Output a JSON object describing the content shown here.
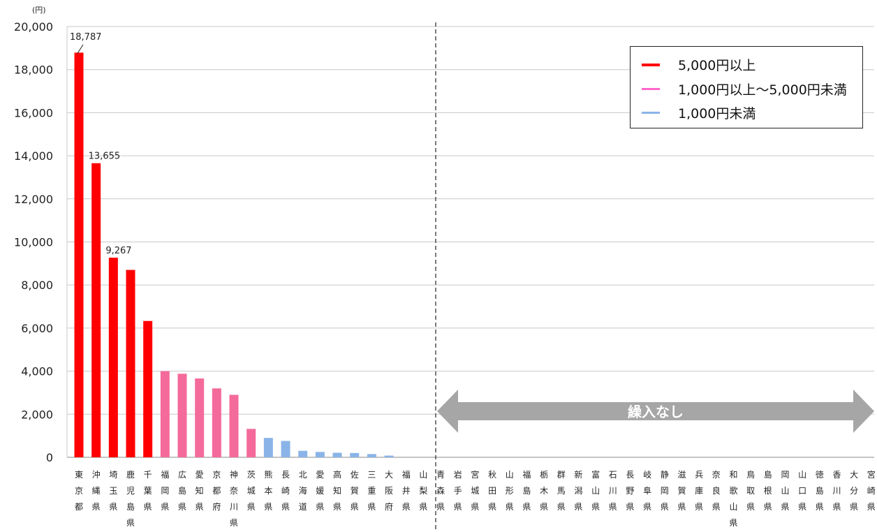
{
  "chart_data": {
    "type": "bar",
    "unit_label": "(円)",
    "ylim": [
      0,
      20000
    ],
    "yticks": [
      "20,000",
      "18,000",
      "16,000",
      "14,000",
      "12,000",
      "10,000",
      "8,000",
      "6,000",
      "4,000",
      "2,000",
      "0"
    ],
    "ytick_values": [
      20000,
      18000,
      16000,
      14000,
      12000,
      10000,
      8000,
      6000,
      4000,
      2000,
      0
    ],
    "grid": true,
    "categories": [
      "東京都",
      "沖縄県",
      "埼玉県",
      "鹿児島県",
      "千葉県",
      "福岡県",
      "広島県",
      "愛知県",
      "京都府",
      "神奈川県",
      "茨城県",
      "熊本県",
      "長崎県",
      "北海道",
      "愛媛県",
      "高知県",
      "佐賀県",
      "三重県",
      "大阪府",
      "福井県",
      "山梨県",
      "青森県",
      "岩手県",
      "宮城県",
      "秋田県",
      "山形県",
      "福島県",
      "栃木県",
      "群馬県",
      "新潟県",
      "富山県",
      "石川県",
      "長野県",
      "岐阜県",
      "静岡県",
      "滋賀県",
      "兵庫県",
      "奈良県",
      "和歌山県",
      "鳥取県",
      "島根県",
      "岡山県",
      "山口県",
      "徳島県",
      "香川県",
      "大分県",
      "宮崎県"
    ],
    "values": [
      18787,
      13655,
      9267,
      8700,
      6330,
      4000,
      3880,
      3660,
      3200,
      2900,
      1320,
      900,
      760,
      300,
      250,
      210,
      200,
      150,
      80,
      0,
      0,
      0,
      0,
      0,
      0,
      0,
      0,
      0,
      0,
      0,
      0,
      0,
      0,
      0,
      0,
      0,
      0,
      0,
      0,
      0,
      0,
      0,
      0,
      0,
      0,
      0,
      0
    ],
    "data_labels": [
      {
        "index": 0,
        "text": "18,787"
      },
      {
        "index": 1,
        "text": "13,655"
      },
      {
        "index": 2,
        "text": "9,267"
      }
    ],
    "legend": {
      "placement": "top-right",
      "entries": [
        {
          "label": "5,000円以上",
          "color": "#ff0000"
        },
        {
          "label": "1,000円以上～5,000円未満",
          "color": "#ff66cc"
        },
        {
          "label": "1,000円未満",
          "color": "#8ab4e8"
        }
      ]
    },
    "bar_colors": {
      "high": "#ff0000",
      "mid": "#f46a9b",
      "low": "#8ab4e8"
    },
    "annotation": {
      "text": "繰入なし",
      "color": "#a6a6a6",
      "from_index": 21,
      "to_index": 46
    }
  }
}
